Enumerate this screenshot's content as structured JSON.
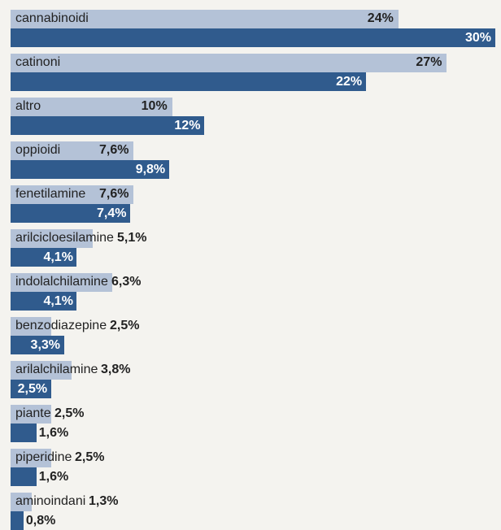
{
  "chart_data": {
    "type": "bar",
    "orientation": "horizontal",
    "grouped": true,
    "categories": [
      "cannabinoidi",
      "catinoni",
      "altro",
      "oppioidi",
      "fenetilamine",
      "arilcicloesilamine",
      "indolalchilamine",
      "benzodiazepine",
      "arilalchilamine",
      "piante",
      "piperidine",
      "aminoindani"
    ],
    "series": [
      {
        "color": "#b4c2d7",
        "values": [
          24,
          27,
          10,
          7.6,
          7.6,
          5.1,
          6.3,
          2.5,
          3.8,
          2.5,
          2.5,
          1.3
        ],
        "labels": [
          "24%",
          "27%",
          "10%",
          "7,6%",
          "7,6%",
          "5,1%",
          "6,3%",
          "2,5%",
          "3,8%",
          "2,5%",
          "2,5%",
          "1,3%"
        ]
      },
      {
        "color": "#305b8d",
        "values": [
          30,
          22,
          12,
          9.8,
          7.4,
          4.1,
          4.1,
          3.3,
          2.5,
          1.6,
          1.6,
          0.8
        ],
        "labels": [
          "30%",
          "22%",
          "12%",
          "9,8%",
          "7,4%",
          "4,1%",
          "4,1%",
          "3,3%",
          "2,5%",
          "1,6%",
          "1,6%",
          "0,8%"
        ]
      }
    ],
    "xlim": [
      0,
      30
    ],
    "unit": "%"
  }
}
